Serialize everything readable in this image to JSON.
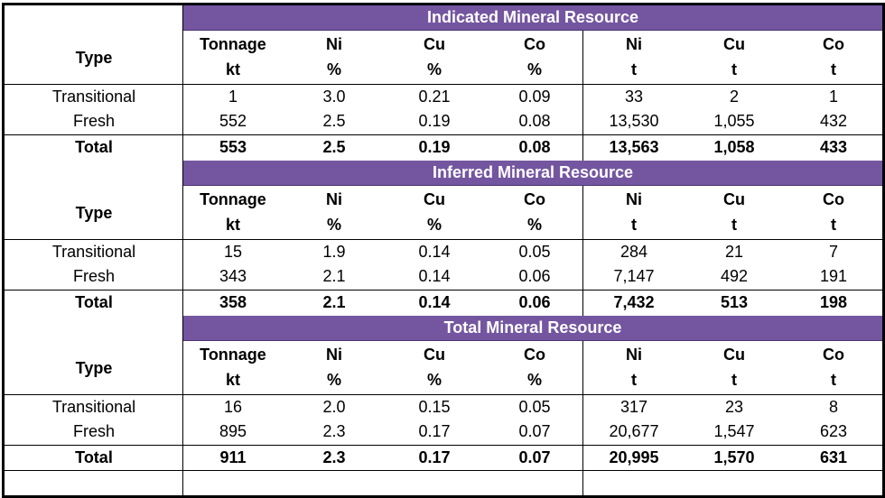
{
  "table": {
    "type_header": "Type",
    "columns": [
      {
        "name": "Tonnage",
        "unit": "kt"
      },
      {
        "name": "Ni",
        "unit": "%"
      },
      {
        "name": "Cu",
        "unit": "%"
      },
      {
        "name": "Co",
        "unit": "%"
      },
      {
        "name": "Ni",
        "unit": "t"
      },
      {
        "name": "Cu",
        "unit": "t"
      },
      {
        "name": "Co",
        "unit": "t"
      }
    ],
    "band_color": "#7456a0",
    "sections": [
      {
        "title": "Indicated Mineral Resource",
        "rows": [
          {
            "type": "Transitional",
            "values": [
              "1",
              "3.0",
              "0.21",
              "0.09",
              "33",
              "2",
              "1"
            ]
          },
          {
            "type": "Fresh",
            "values": [
              "552",
              "2.5",
              "0.19",
              "0.08",
              "13,530",
              "1,055",
              "432"
            ]
          }
        ],
        "total": {
          "type": "Total",
          "values": [
            "553",
            "2.5",
            "0.19",
            "0.08",
            "13,563",
            "1,058",
            "433"
          ]
        }
      },
      {
        "title": "Inferred Mineral Resource",
        "rows": [
          {
            "type": "Transitional",
            "values": [
              "15",
              "1.9",
              "0.14",
              "0.05",
              "284",
              "21",
              "7"
            ]
          },
          {
            "type": "Fresh",
            "values": [
              "343",
              "2.1",
              "0.14",
              "0.06",
              "7,147",
              "492",
              "191"
            ]
          }
        ],
        "total": {
          "type": "Total",
          "values": [
            "358",
            "2.1",
            "0.14",
            "0.06",
            "7,432",
            "513",
            "198"
          ]
        }
      },
      {
        "title": "Total Mineral Resource",
        "rows": [
          {
            "type": "Transitional",
            "values": [
              "16",
              "2.0",
              "0.15",
              "0.05",
              "317",
              "23",
              "8"
            ]
          },
          {
            "type": "Fresh",
            "values": [
              "895",
              "2.3",
              "0.17",
              "0.07",
              "20,677",
              "1,547",
              "623"
            ]
          }
        ],
        "total": {
          "type": "Total",
          "values": [
            "911",
            "2.3",
            "0.17",
            "0.07",
            "20,995",
            "1,570",
            "631"
          ]
        }
      }
    ]
  }
}
